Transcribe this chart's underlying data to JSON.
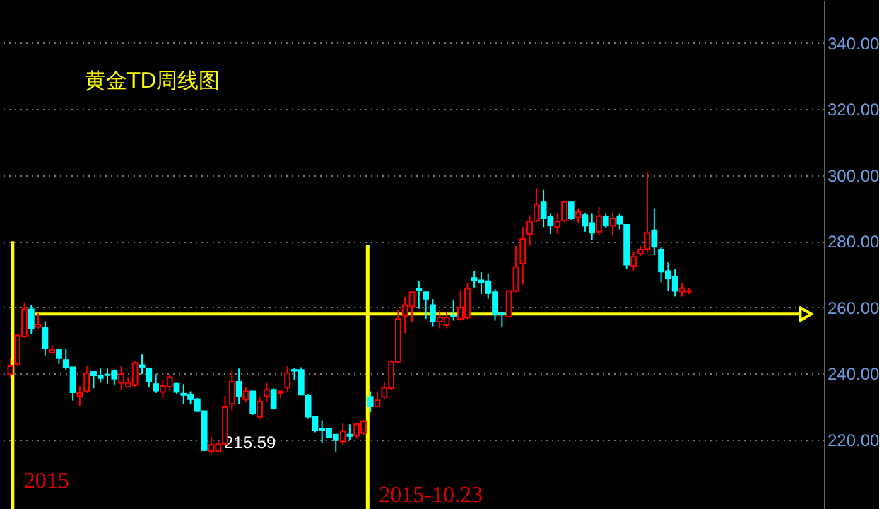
{
  "chart_data": {
    "type": "candlestick",
    "title": "黄金TD周线图",
    "categories": [
      null,
      null,
      null,
      null,
      null,
      null,
      null,
      null,
      null,
      null,
      null,
      null,
      null,
      null,
      null,
      null,
      null,
      null,
      null,
      null,
      null,
      null,
      null,
      null,
      null,
      null,
      null,
      null,
      null,
      null,
      null,
      null,
      null,
      null,
      null,
      null,
      null,
      null,
      null,
      null,
      null,
      null,
      null,
      null,
      null,
      null,
      null,
      null,
      null,
      null,
      null,
      null,
      null,
      null,
      null,
      null,
      null,
      null,
      null,
      null,
      null,
      null,
      null,
      null,
      null,
      null,
      null,
      null,
      null,
      null,
      null,
      null,
      null,
      null,
      null,
      null,
      null,
      null,
      null,
      null,
      null,
      null,
      null,
      null,
      null,
      null,
      null,
      null,
      null,
      null,
      null,
      null,
      null,
      null,
      null,
      null,
      null,
      null,
      null,
      null,
      null,
      null,
      null,
      null,
      null,
      null,
      null,
      null,
      null,
      null,
      null,
      null,
      null,
      null,
      null,
      null,
      null
    ],
    "ohlc": [
      [
        239.8,
        244.4,
        238.6,
        242.2
      ],
      [
        242.9,
        251.9,
        242.2,
        251.5
      ],
      [
        251.2,
        261.5,
        250.8,
        259.4
      ],
      [
        259.4,
        260.8,
        251.9,
        253.6
      ],
      [
        254.1,
        258.2,
        253.6,
        254.8
      ],
      [
        253.9,
        255.8,
        245.5,
        247.6
      ],
      [
        246.3,
        248.6,
        246.3,
        247.2
      ],
      [
        247.1,
        247.1,
        242.9,
        244.6
      ],
      [
        244.1,
        247.5,
        241.2,
        241.9
      ],
      [
        241.9,
        241.9,
        231.8,
        234.3
      ],
      [
        233.2,
        236.2,
        230.1,
        234.1
      ],
      [
        234.6,
        242.2,
        234.1,
        240.1
      ],
      [
        240.5,
        240.5,
        235.5,
        239.4
      ],
      [
        239.4,
        241.5,
        237.2,
        238.6
      ],
      [
        239.7,
        241.5,
        236.9,
        239.5
      ],
      [
        240.8,
        241.2,
        236.5,
        238.4
      ],
      [
        237.2,
        242.2,
        235.1,
        239.8
      ],
      [
        236.0,
        238.9,
        235.8,
        237.2
      ],
      [
        236.5,
        243.9,
        236.0,
        243.2
      ],
      [
        242.5,
        245.8,
        239.8,
        241.8
      ],
      [
        241.5,
        241.8,
        236.0,
        237.5
      ],
      [
        236.8,
        239.8,
        234.1,
        234.8
      ],
      [
        234.4,
        237.9,
        232.6,
        236.2
      ],
      [
        236.0,
        239.8,
        235.1,
        238.9
      ],
      [
        236.9,
        237.2,
        233.9,
        234.4
      ],
      [
        233.9,
        236.8,
        230.8,
        233.5
      ],
      [
        233.6,
        234.6,
        230.8,
        232.2
      ],
      [
        232.2,
        232.6,
        228.4,
        228.6
      ],
      [
        228.6,
        228.6,
        216.5,
        216.8
      ],
      [
        216.5,
        220.8,
        215.59,
        218.4
      ],
      [
        216.5,
        219.8,
        216.1,
        218.6
      ],
      [
        218.6,
        233.2,
        218.4,
        229.8
      ],
      [
        230.8,
        240.8,
        228.6,
        237.5
      ],
      [
        237.5,
        241.5,
        230.8,
        233.2
      ],
      [
        232.2,
        235.8,
        231.5,
        234.6
      ],
      [
        234.6,
        234.6,
        227.5,
        227.9
      ],
      [
        226.9,
        232.9,
        226.1,
        231.5
      ],
      [
        233.1,
        237.2,
        231.5,
        235.1
      ],
      [
        235.1,
        235.5,
        229.1,
        229.4
      ],
      [
        234.1,
        235.1,
        232.6,
        234.6
      ],
      [
        235.8,
        242.2,
        234.6,
        240.1
      ],
      [
        241.1,
        241.8,
        237.9,
        240.8
      ],
      [
        241.1,
        241.9,
        233.4,
        233.6
      ],
      [
        233.2,
        233.6,
        226.5,
        226.9
      ],
      [
        226.9,
        227.2,
        222.2,
        222.9
      ],
      [
        223.2,
        225.8,
        218.9,
        222.9
      ],
      [
        223.2,
        223.6,
        220.4,
        220.8
      ],
      [
        221.5,
        221.5,
        216.1,
        219.8
      ],
      [
        219.4,
        225.1,
        218.4,
        222.6
      ],
      [
        221.5,
        224.6,
        219.8,
        221.1
      ],
      [
        221.2,
        225.1,
        220.4,
        224.6
      ],
      [
        222.0,
        226.0,
        221.5,
        225.5
      ],
      [
        232.9,
        234.6,
        228.3,
        230.0
      ],
      [
        230.0,
        234.6,
        229.7,
        231.9
      ],
      [
        232.9,
        237.4,
        232.2,
        235.7
      ],
      [
        235.5,
        244.0,
        235.0,
        243.6
      ],
      [
        243.6,
        259.3,
        243.2,
        256.5
      ],
      [
        257.5,
        263.2,
        252.2,
        260.7
      ],
      [
        260.3,
        264.6,
        255.5,
        264.6
      ],
      [
        265.7,
        267.9,
        259.6,
        265.3
      ],
      [
        264.6,
        264.6,
        256.5,
        262.6
      ],
      [
        260.7,
        262.5,
        254.3,
        255.7
      ],
      [
        255.7,
        259.3,
        253.6,
        256.9
      ],
      [
        254.6,
        258.6,
        253.6,
        256.9
      ],
      [
        257.5,
        262.2,
        256.0,
        257.2
      ],
      [
        256.5,
        265.0,
        256.0,
        260.0
      ],
      [
        256.9,
        267.2,
        256.5,
        265.7
      ],
      [
        268.9,
        271.0,
        266.0,
        268.2
      ],
      [
        268.2,
        270.7,
        264.0,
        267.5
      ],
      [
        267.9,
        270.3,
        262.6,
        264.3
      ],
      [
        264.6,
        265.5,
        256.0,
        257.9
      ],
      [
        258.3,
        258.6,
        254.0,
        258.0
      ],
      [
        257.2,
        265.0,
        256.9,
        265.0
      ],
      [
        265.0,
        278.6,
        264.6,
        272.2
      ],
      [
        273.2,
        284.3,
        266.9,
        280.7
      ],
      [
        282.2,
        287.9,
        278.6,
        286.0
      ],
      [
        286.2,
        296.0,
        285.8,
        291.2
      ],
      [
        291.8,
        295.5,
        284.3,
        286.9
      ],
      [
        287.5,
        288.3,
        282.2,
        284.7
      ],
      [
        284.3,
        288.6,
        282.2,
        286.0
      ],
      [
        286.2,
        291.9,
        285.8,
        291.9
      ],
      [
        291.8,
        291.8,
        286.5,
        286.9
      ],
      [
        287.2,
        290.0,
        285.5,
        288.9
      ],
      [
        287.9,
        288.6,
        282.9,
        284.7
      ],
      [
        285.5,
        288.3,
        280.5,
        282.6
      ],
      [
        282.9,
        290.3,
        281.8,
        287.6
      ],
      [
        287.5,
        288.3,
        284.0,
        284.7
      ],
      [
        284.7,
        288.6,
        281.8,
        286.9
      ],
      [
        287.6,
        288.3,
        283.6,
        285.3
      ],
      [
        285.0,
        285.0,
        271.5,
        272.9
      ],
      [
        272.5,
        276.9,
        271.2,
        275.3
      ],
      [
        276.2,
        278.6,
        275.5,
        277.5
      ],
      [
        277.6,
        300.8,
        276.8,
        282.6
      ],
      [
        283.3,
        290.0,
        275.8,
        278.3
      ],
      [
        277.5,
        278.3,
        267.6,
        270.8
      ],
      [
        271.0,
        273.6,
        265.0,
        268.9
      ],
      [
        269.3,
        271.5,
        263.3,
        265.0
      ],
      [
        264.8,
        267.2,
        263.3,
        265.8
      ],
      [
        264.8,
        265.8,
        264.0,
        265.0
      ],
      null,
      null,
      null,
      null,
      null,
      null,
      null,
      null,
      null,
      null,
      null,
      null,
      null,
      null,
      null,
      null,
      null,
      null
    ],
    "colors": [
      "#ff0000",
      "#ff0000",
      "#ff0000",
      "#00ffff",
      "#ff0000",
      "#00ffff",
      "#ff0000",
      "#00ffff",
      "#00ffff",
      "#00ffff",
      "#ff0000",
      "#ff0000",
      "#00ffff",
      "#00ffff",
      "#00ffff",
      "#00ffff",
      "#ff0000",
      "#ff0000",
      "#ff0000",
      "#00ffff",
      "#00ffff",
      "#00ffff",
      "#ff0000",
      "#ff0000",
      "#00ffff",
      "#00ffff",
      "#00ffff",
      "#00ffff",
      "#00ffff",
      "#ff0000",
      "#ff0000",
      "#ff0000",
      "#ff0000",
      "#00ffff",
      "#ff0000",
      "#00ffff",
      "#ff0000",
      "#ff0000",
      "#00ffff",
      "#ff0000",
      "#ff0000",
      "#00ffff",
      "#00ffff",
      "#00ffff",
      "#00ffff",
      "#00ffff",
      "#00ffff",
      "#00ffff",
      "#ff0000",
      "#00ffff",
      "#ff0000",
      "#ff0000",
      "#00ffff",
      "#ff0000",
      "#ff0000",
      "#ff0000",
      "#ff0000",
      "#ff0000",
      "#ff0000",
      "#00ffff",
      "#00ffff",
      "#00ffff",
      "#ff0000",
      "#ff0000",
      "#00ffff",
      "#ff0000",
      "#ff0000",
      "#00ffff",
      "#00ffff",
      "#00ffff",
      "#00ffff",
      "#00ffff",
      "#ff0000",
      "#ff0000",
      "#ff0000",
      "#ff0000",
      "#ff0000",
      "#00ffff",
      "#00ffff",
      "#ff0000",
      "#ff0000",
      "#00ffff",
      "#ff0000",
      "#00ffff",
      "#00ffff",
      "#ff0000",
      "#00ffff",
      "#ff0000",
      "#00ffff",
      "#00ffff",
      "#ff0000",
      "#ff0000",
      "#ff0000",
      "#00ffff",
      "#00ffff",
      "#00ffff",
      "#00ffff",
      "#ff0000",
      "#ff0000",
      null,
      null,
      null,
      null,
      null,
      null,
      null,
      null,
      null,
      null,
      null,
      null,
      null,
      null,
      null,
      null,
      null,
      null
    ],
    "ylim": [
      199,
      353
    ],
    "yticks": [
      {
        "value": 220,
        "label": "220.00"
      },
      {
        "value": 240,
        "label": "240.00"
      },
      {
        "value": 260,
        "label": "260.00"
      },
      {
        "value": 280,
        "label": "280.00"
      },
      {
        "value": 300,
        "label": "300.00"
      },
      {
        "value": 320,
        "label": "320.00"
      },
      {
        "value": 340,
        "label": "340.00"
      }
    ],
    "ref_lines": [
      {
        "axis": "y",
        "value": 258,
        "color": "#ffff00"
      }
    ],
    "annotations": [
      "2015",
      "2015-10.23",
      "215.59"
    ],
    "grid": "y",
    "tick_labels": "y"
  }
}
